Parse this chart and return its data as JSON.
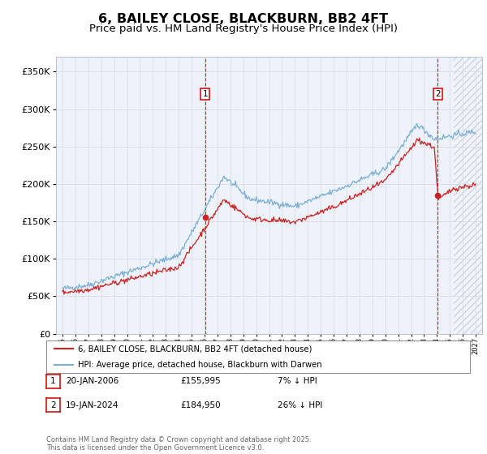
{
  "title": "6, BAILEY CLOSE, BLACKBURN, BB2 4FT",
  "subtitle": "Price paid vs. HM Land Registry's House Price Index (HPI)",
  "title_fontsize": 11.5,
  "subtitle_fontsize": 9.5,
  "background_color": "#ffffff",
  "plot_bg_color": "#eef2fa",
  "grid_color": "#d8dce8",
  "hatch_color": "#c8ccd8",
  "sale1_x": 2006.05,
  "sale1_y": 155995,
  "sale2_x": 2024.05,
  "sale2_y": 184950,
  "xmin": 1994.5,
  "xmax": 2027.5,
  "ymin": 0,
  "ymax": 370000,
  "yticks": [
    0,
    50000,
    100000,
    150000,
    200000,
    250000,
    300000,
    350000
  ],
  "hpi_color": "#7bafd4",
  "pp_color": "#cc2222",
  "vline_color": "#cc0000",
  "forecast_start": 2025.3,
  "legend_line1": "6, BAILEY CLOSE, BLACKBURN, BB2 4FT (detached house)",
  "legend_line2": "HPI: Average price, detached house, Blackburn with Darwen",
  "footer": "Contains HM Land Registry data © Crown copyright and database right 2025.\nThis data is licensed under the Open Government Licence v3.0.",
  "table": [
    {
      "num": "1",
      "date": "20-JAN-2006",
      "price": "£155,995",
      "note": "7% ↓ HPI"
    },
    {
      "num": "2",
      "date": "19-JAN-2024",
      "price": "£184,950",
      "note": "26% ↓ HPI"
    }
  ]
}
